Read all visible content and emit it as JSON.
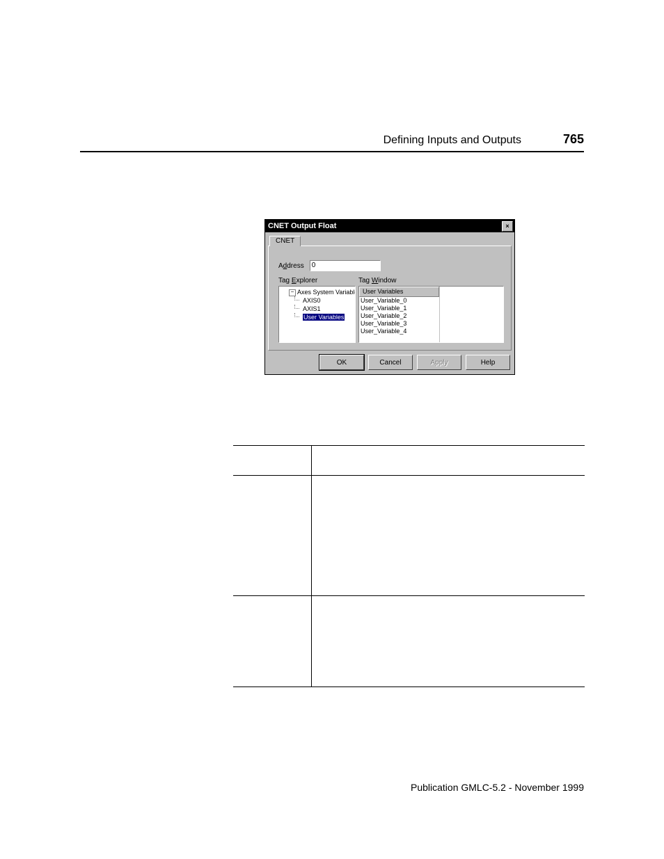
{
  "header": {
    "title": "Defining Inputs and Outputs",
    "page": "765"
  },
  "footer": {
    "text": "Publication GMLC-5.2 - November 1999"
  },
  "dialog": {
    "title": "CNET Output Float",
    "close_glyph": "×",
    "tab": "CNET",
    "address_label_pre": "A",
    "address_label_u": "d",
    "address_label_post": "dress",
    "address_value": "0",
    "explorer_label_pre": "Tag ",
    "explorer_label_u": "E",
    "explorer_label_post": "xplorer",
    "tagwin_label_pre": "Tag ",
    "tagwin_label_u": "W",
    "tagwin_label_post": "indow",
    "tree_root": "Axes System Variables",
    "tree_children": [
      "AXIS0",
      "AXIS1",
      "User Variables"
    ],
    "tree_selected_index": 2,
    "tagwin_header": "User Variables",
    "tagwin_items": [
      "User_Variable_0",
      "User_Variable_1",
      "User_Variable_2",
      "User_Variable_3",
      "User_Variable_4"
    ],
    "buttons": {
      "ok": "OK",
      "cancel": "Cancel",
      "apply": "Apply",
      "help": "Help"
    }
  }
}
